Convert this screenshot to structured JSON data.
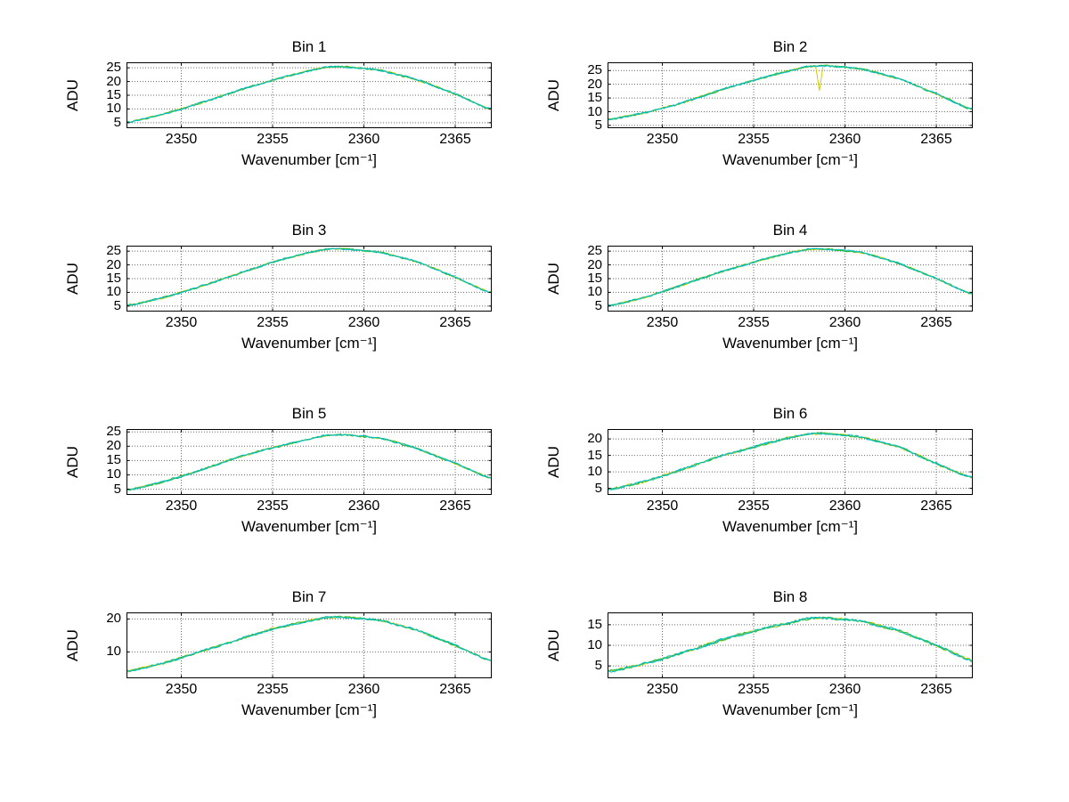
{
  "figure": {
    "background": "#ffffff",
    "axis_color": "#000000",
    "grid_color": "#6a6a6a",
    "trace_colors": [
      "#00b89c",
      "#d4cf00",
      "#2db82d",
      "#00c0d8"
    ]
  },
  "chart_data": [
    {
      "type": "line",
      "title": "Bin 1",
      "xlabel": "Wavenumber [cm⁻¹]",
      "ylabel": "ADU",
      "xlim": [
        2347,
        2367
      ],
      "ylim": [
        3,
        27
      ],
      "xticks": [
        2350,
        2355,
        2360,
        2365
      ],
      "yticks": [
        5,
        10,
        15,
        20,
        25
      ],
      "grid": true,
      "legend": "none",
      "x": [
        2347,
        2349,
        2351,
        2353,
        2355,
        2357,
        2358,
        2359,
        2361,
        2363,
        2365,
        2367
      ],
      "values": [
        5,
        8,
        12,
        16.5,
        20.5,
        24,
        25.3,
        25.4,
        24,
        20.5,
        15.5,
        9.5
      ]
    },
    {
      "type": "line",
      "title": "Bin 2",
      "xlabel": "Wavenumber [cm⁻¹]",
      "ylabel": "ADU",
      "xlim": [
        2347,
        2367
      ],
      "ylim": [
        4,
        28
      ],
      "xticks": [
        2350,
        2355,
        2360,
        2365
      ],
      "yticks": [
        5,
        10,
        15,
        20,
        25
      ],
      "grid": true,
      "legend": "none",
      "x": [
        2347,
        2349,
        2351,
        2353,
        2355,
        2357,
        2358,
        2359,
        2361,
        2363,
        2365,
        2367
      ],
      "values": [
        7,
        9.5,
        13,
        17.5,
        21.5,
        25,
        26.5,
        26.8,
        25.5,
        22,
        16.5,
        10.5
      ],
      "dip": {
        "x": 2358.6,
        "depth": 9
      }
    },
    {
      "type": "line",
      "title": "Bin 3",
      "xlabel": "Wavenumber [cm⁻¹]",
      "ylabel": "ADU",
      "xlim": [
        2347,
        2367
      ],
      "ylim": [
        3,
        27
      ],
      "xticks": [
        2350,
        2355,
        2360,
        2365
      ],
      "yticks": [
        5,
        10,
        15,
        20,
        25
      ],
      "grid": true,
      "legend": "none",
      "x": [
        2347,
        2349,
        2351,
        2353,
        2355,
        2357,
        2358,
        2359,
        2361,
        2363,
        2365,
        2367
      ],
      "values": [
        5,
        8,
        12,
        16.5,
        21,
        24.5,
        25.8,
        25.9,
        24.5,
        21,
        15.5,
        9.5
      ]
    },
    {
      "type": "line",
      "title": "Bin 4",
      "xlabel": "Wavenumber [cm⁻¹]",
      "ylabel": "ADU",
      "xlim": [
        2347,
        2367
      ],
      "ylim": [
        3,
        27
      ],
      "xticks": [
        2350,
        2355,
        2360,
        2365
      ],
      "yticks": [
        5,
        10,
        15,
        20,
        25
      ],
      "grid": true,
      "legend": "none",
      "x": [
        2347,
        2349,
        2351,
        2353,
        2355,
        2357,
        2358,
        2359,
        2361,
        2363,
        2365,
        2367
      ],
      "values": [
        5,
        8,
        12.5,
        17,
        21,
        24.5,
        25.7,
        25.8,
        24.5,
        20.5,
        15,
        9
      ]
    },
    {
      "type": "line",
      "title": "Bin 5",
      "xlabel": "Wavenumber [cm⁻¹]",
      "ylabel": "ADU",
      "xlim": [
        2347,
        2367
      ],
      "ylim": [
        3,
        26
      ],
      "xticks": [
        2350,
        2355,
        2360,
        2365
      ],
      "yticks": [
        5,
        10,
        15,
        20,
        25
      ],
      "grid": true,
      "legend": "none",
      "x": [
        2347,
        2349,
        2351,
        2353,
        2355,
        2357,
        2358,
        2359,
        2361,
        2363,
        2365,
        2367
      ],
      "values": [
        4.5,
        7.5,
        11.5,
        16,
        19.5,
        22.5,
        23.9,
        24.1,
        22.8,
        19,
        14,
        8.5
      ]
    },
    {
      "type": "line",
      "title": "Bin 6",
      "xlabel": "Wavenumber [cm⁻¹]",
      "ylabel": "ADU",
      "xlim": [
        2347,
        2367
      ],
      "ylim": [
        3,
        23
      ],
      "xticks": [
        2350,
        2355,
        2360,
        2365
      ],
      "yticks": [
        5,
        10,
        15,
        20
      ],
      "grid": true,
      "legend": "none",
      "x": [
        2347,
        2349,
        2351,
        2353,
        2355,
        2357,
        2358,
        2359,
        2361,
        2363,
        2365,
        2367
      ],
      "values": [
        4.5,
        7,
        10.5,
        14.5,
        17.5,
        20.5,
        21.5,
        21.7,
        20.5,
        17.5,
        12.5,
        8
      ]
    },
    {
      "type": "line",
      "title": "Bin 7",
      "xlabel": "Wavenumber [cm⁻¹]",
      "ylabel": "ADU",
      "xlim": [
        2347,
        2367
      ],
      "ylim": [
        2,
        22
      ],
      "xticks": [
        2350,
        2355,
        2360,
        2365
      ],
      "yticks": [
        10,
        20
      ],
      "grid": true,
      "legend": "none",
      "x": [
        2347,
        2349,
        2351,
        2353,
        2355,
        2357,
        2358,
        2359,
        2361,
        2363,
        2365,
        2367
      ],
      "values": [
        4,
        6.5,
        10,
        13.5,
        17,
        19.5,
        20.5,
        20.6,
        19.5,
        16.5,
        12,
        7
      ]
    },
    {
      "type": "line",
      "title": "Bin 8",
      "xlabel": "Wavenumber [cm⁻¹]",
      "ylabel": "ADU",
      "xlim": [
        2347,
        2367
      ],
      "ylim": [
        2,
        18
      ],
      "xticks": [
        2350,
        2355,
        2360,
        2365
      ],
      "yticks": [
        5,
        10,
        15
      ],
      "grid": true,
      "legend": "none",
      "x": [
        2347,
        2349,
        2351,
        2353,
        2355,
        2357,
        2358,
        2359,
        2361,
        2363,
        2365,
        2367
      ],
      "values": [
        3.5,
        5.5,
        8,
        11,
        13.5,
        15.5,
        16.5,
        16.7,
        15.8,
        13.5,
        10,
        6
      ]
    }
  ]
}
